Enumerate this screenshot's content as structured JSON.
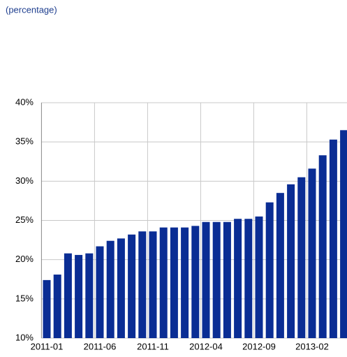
{
  "chart_data": {
    "type": "bar",
    "subtitle": "(percentage)",
    "categories": [
      "2011-01",
      null,
      null,
      null,
      null,
      "2011-06",
      null,
      null,
      null,
      null,
      "2011-11",
      null,
      null,
      null,
      null,
      "2012-04",
      null,
      null,
      null,
      null,
      "2012-09",
      null,
      null,
      null,
      null,
      "2013-02",
      null,
      null,
      null
    ],
    "values": [
      17.4,
      18.1,
      20.8,
      20.6,
      20.8,
      21.7,
      22.4,
      22.7,
      23.2,
      23.6,
      23.6,
      24.1,
      24.1,
      24.1,
      24.3,
      24.8,
      24.8,
      24.8,
      25.2,
      25.2,
      25.5,
      27.3,
      28.5,
      29.6,
      30.5,
      31.6,
      33.3,
      35.3,
      36.5
    ],
    "color": "#0a2d94",
    "ylim": [
      10,
      40
    ],
    "yticks": [
      {
        "value": 10,
        "label": "10%"
      },
      {
        "value": 15,
        "label": "15%"
      },
      {
        "value": 20,
        "label": "20%"
      },
      {
        "value": 25,
        "label": "25%"
      },
      {
        "value": 30,
        "label": "30%"
      },
      {
        "value": 35,
        "label": "35%"
      },
      {
        "value": 40,
        "label": "40%"
      }
    ],
    "grid": true
  }
}
